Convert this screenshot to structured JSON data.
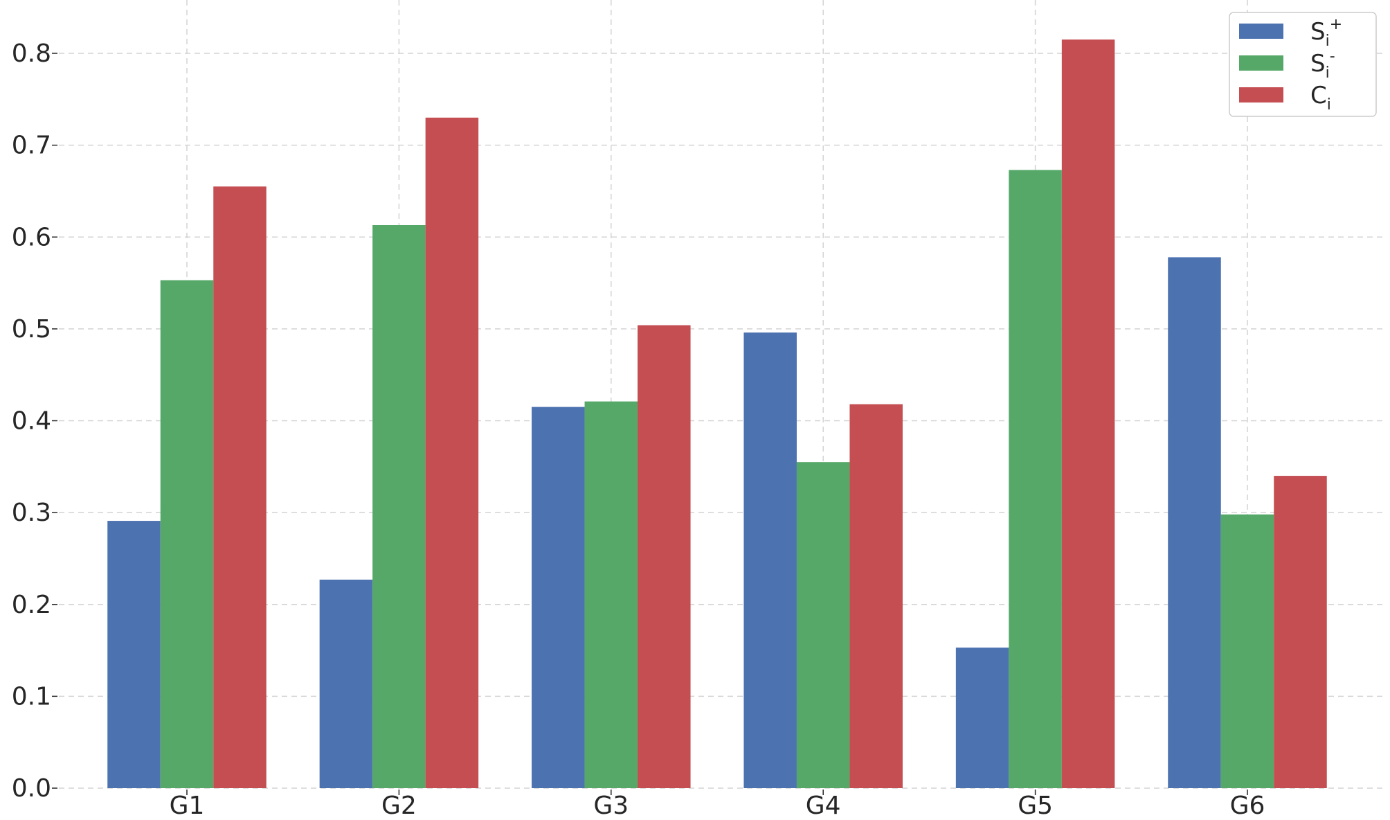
{
  "chart_data": {
    "type": "bar",
    "title": "",
    "xlabel": "",
    "ylabel": "",
    "categories": [
      "G1",
      "G2",
      "G3",
      "G4",
      "G5",
      "G6"
    ],
    "series": [
      {
        "name": "Si+",
        "label_base": "S",
        "label_sub": "i",
        "label_sup": "+",
        "color": "#4c72b0",
        "values": [
          0.291,
          0.227,
          0.415,
          0.496,
          0.153,
          0.578
        ]
      },
      {
        "name": "Si-",
        "label_base": "S",
        "label_sub": "i",
        "label_sup": "-",
        "color": "#55a868",
        "values": [
          0.553,
          0.613,
          0.421,
          0.355,
          0.673,
          0.298
        ]
      },
      {
        "name": "Ci",
        "label_base": "C",
        "label_sub": "i",
        "label_sup": "",
        "color": "#c44e52",
        "values": [
          0.655,
          0.73,
          0.504,
          0.418,
          0.815,
          0.34
        ]
      }
    ],
    "ylim": [
      0,
      0.84
    ],
    "yticks": [
      "0.0",
      "0.1",
      "0.2",
      "0.3",
      "0.4",
      "0.5",
      "0.6",
      "0.7",
      "0.8"
    ],
    "grid": true,
    "legend_position": "top-right"
  }
}
